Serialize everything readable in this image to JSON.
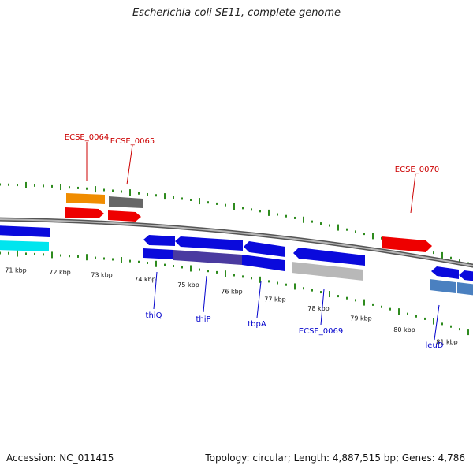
{
  "title": "Escherichia coli SE11, complete genome",
  "footer": {
    "accession": "Accession: NC_011415",
    "summary": "Topology: circular; Length: 4,887,515 bp; Genes: 4,786"
  },
  "colors": {
    "backbone": "#8c8c8c",
    "tick": "#2e8b1e",
    "label_red": "#cc0000",
    "label_blue": "#0000cc",
    "gene_blue": "#0a0adc",
    "gene_red": "#ee0000",
    "gene_orange": "#f08c00",
    "gene_gray": "#666666",
    "gene_cyan": "#00e5ee",
    "gene_steel": "#4a80c0",
    "gene_purple": "#4a3aa0",
    "gene_silver": "#b8b8b8"
  },
  "scale": {
    "unit": "kbp",
    "ticks": [
      "71 kbp",
      "72 kbp",
      "73 kbp",
      "74 kbp",
      "75 kbp",
      "76 kbp",
      "77 kbp",
      "78 kbp",
      "79 kbp",
      "80 kbp",
      "81 kbp"
    ]
  },
  "genes": [
    {
      "name": "ECSE_0064",
      "labeled": true
    },
    {
      "name": "ECSE_0065",
      "labeled": true
    },
    {
      "name": "ECSE_0070",
      "labeled": true
    },
    {
      "name": "thiQ",
      "labeled": true
    },
    {
      "name": "thiP",
      "labeled": true
    },
    {
      "name": "tbpA",
      "labeled": true
    },
    {
      "name": "ECSE_0069",
      "labeled": true
    },
    {
      "name": "leuD",
      "labeled": true
    }
  ]
}
